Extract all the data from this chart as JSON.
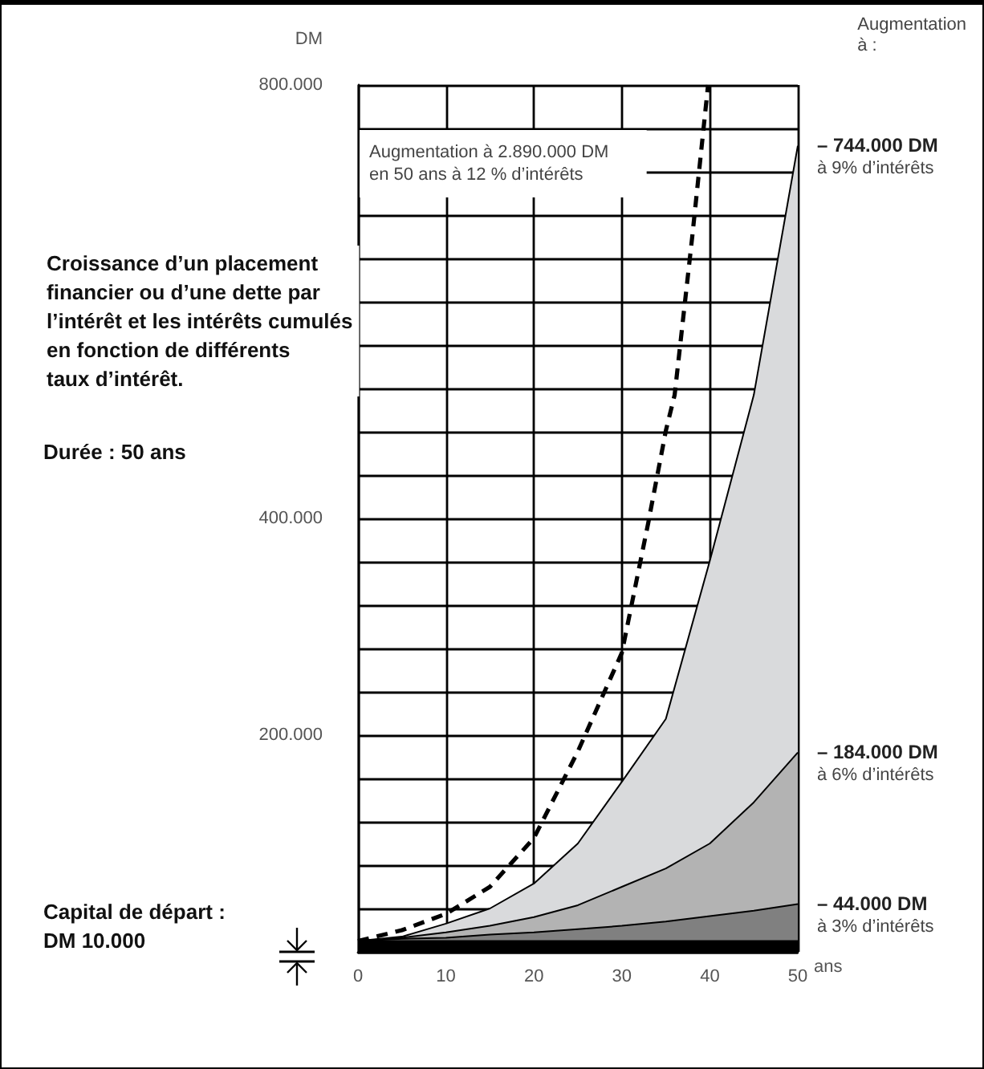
{
  "chart_data": {
    "type": "area",
    "title": "Croissance d’un placement\nfinancier ou d’une dette par\nl’intérêt et les intérêts cumulés\nen fonction de différents\ntaux d’intérêt.",
    "subtitle": "Durée : 50 ans",
    "xlabel": "ans",
    "ylabel": "DM",
    "x": [
      0,
      5,
      10,
      15,
      20,
      25,
      30,
      35,
      40,
      45,
      50
    ],
    "series": [
      {
        "color": "#d9dadc",
        "values": [
          10000,
          14000,
          26000,
          40000,
          63000,
          100000,
          157000,
          215000,
          361000,
          514000,
          744000
        ]
      },
      {
        "color": "#b3b3b3",
        "values": [
          10000,
          13000,
          18000,
          24000,
          32000,
          43000,
          60000,
          77000,
          100000,
          138000,
          184000
        ]
      },
      {
        "color": "#808080",
        "values": [
          10000,
          12000,
          13000,
          16000,
          18000,
          21000,
          24000,
          28000,
          33000,
          38000,
          44000
        ]
      },
      {
        "color": "#000000",
        "values": [
          10000,
          10000,
          10000,
          10000,
          10000,
          10000,
          10000,
          10000,
          10000,
          10000,
          10000
        ]
      },
      {
        "type": "line",
        "color": "#000000",
        "line_style": "dashed",
        "x": [
          0,
          5,
          10,
          15,
          20,
          25,
          30,
          33,
          35,
          36,
          38,
          39.8
        ],
        "values": [
          10000,
          20000,
          35000,
          60000,
          105000,
          185000,
          276000,
          396000,
          481000,
          514000,
          660000,
          800000
        ]
      }
    ],
    "xlim": [
      0,
      50
    ],
    "xticks": [
      0,
      10,
      20,
      30,
      40,
      50
    ],
    "ylim": [
      0,
      800000
    ],
    "yticks": [
      {
        "value": 0,
        "label": null
      },
      {
        "value": 40000,
        "label": null
      },
      {
        "value": 80000,
        "label": null
      },
      {
        "value": 120000,
        "label": null
      },
      {
        "value": 160000,
        "label": null
      },
      {
        "value": 200000,
        "label": "200.000"
      },
      {
        "value": 240000,
        "label": null
      },
      {
        "value": 280000,
        "label": null
      },
      {
        "value": 320000,
        "label": null
      },
      {
        "value": 360000,
        "label": null
      },
      {
        "value": 400000,
        "label": "400.000"
      },
      {
        "value": 440000,
        "label": null
      },
      {
        "value": 480000,
        "label": null
      },
      {
        "value": 520000,
        "label": null
      },
      {
        "value": 560000,
        "label": null
      },
      {
        "value": 600000,
        "label": null
      },
      {
        "value": 640000,
        "label": null
      },
      {
        "value": 680000,
        "label": null
      },
      {
        "value": 720000,
        "label": null
      },
      {
        "value": 760000,
        "label": null
      },
      {
        "value": 800000,
        "label": "800.000"
      }
    ],
    "grid": true,
    "marker": "none",
    "annotations": [
      "Augmentation\nà :",
      "Augmentation à 2.890.000 DM\nen 50 ans à 12 % d’intérêts",
      "Capital de départ :\nDM 10.000",
      "– 744.000 DM\nà 9% d’intérêts",
      "– 184.000 DM\nà 6% d’intérêts",
      "– 44.000 DM\nà 3% d’intérêts"
    ]
  }
}
